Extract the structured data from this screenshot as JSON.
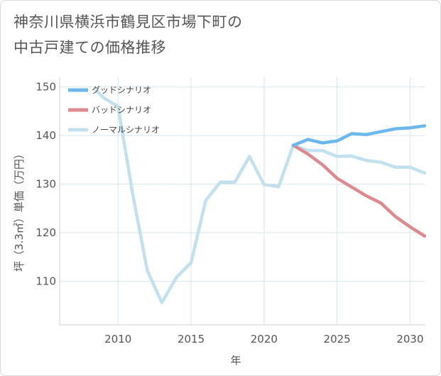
{
  "title_lines": [
    "神奈川県横浜市鶴見区市場下町の",
    "中古戸建ての価格推移"
  ],
  "chart_data": {
    "type": "line",
    "xlabel": "年",
    "ylabel": "坪（3.3㎡）単価（万円）",
    "xlim": [
      2006,
      2031
    ],
    "ylim": [
      101,
      152
    ],
    "xticks": [
      2010,
      2015,
      2020,
      2025,
      2030
    ],
    "yticks": [
      110,
      120,
      130,
      140,
      150
    ],
    "grid": true,
    "legend_position": "top-left",
    "series": [
      {
        "name": "グッドシナリオ",
        "color": "#6cb8ee",
        "x": [
          2022,
          2023,
          2024,
          2025,
          2026,
          2027,
          2028,
          2029,
          2030,
          2031
        ],
        "y": [
          138.0,
          139.2,
          138.5,
          138.9,
          140.4,
          140.2,
          140.8,
          141.4,
          141.6,
          142.0
        ]
      },
      {
        "name": "バッドシナリオ",
        "color": "#dc8a90",
        "x": [
          2022,
          2023,
          2024,
          2025,
          2026,
          2027,
          2028,
          2029,
          2030,
          2031
        ],
        "y": [
          138.0,
          136.2,
          134.0,
          131.2,
          129.4,
          127.6,
          126.1,
          123.3,
          121.2,
          119.3
        ]
      },
      {
        "name": "ノーマルシナリオ",
        "color": "#c3e0ee",
        "x": [
          2008.5,
          2009,
          2010,
          2011,
          2012,
          2013,
          2014,
          2015,
          2016,
          2017,
          2018,
          2019,
          2020,
          2021,
          2022,
          2023,
          2024,
          2025,
          2026,
          2027,
          2028,
          2029,
          2030,
          2031
        ],
        "y": [
          149.3,
          147.8,
          146.0,
          128.0,
          112.2,
          105.6,
          110.8,
          113.8,
          126.6,
          130.4,
          130.4,
          135.7,
          129.9,
          129.5,
          138.0,
          136.9,
          136.9,
          135.7,
          135.8,
          134.9,
          134.5,
          133.5,
          133.5,
          132.3
        ]
      }
    ]
  }
}
